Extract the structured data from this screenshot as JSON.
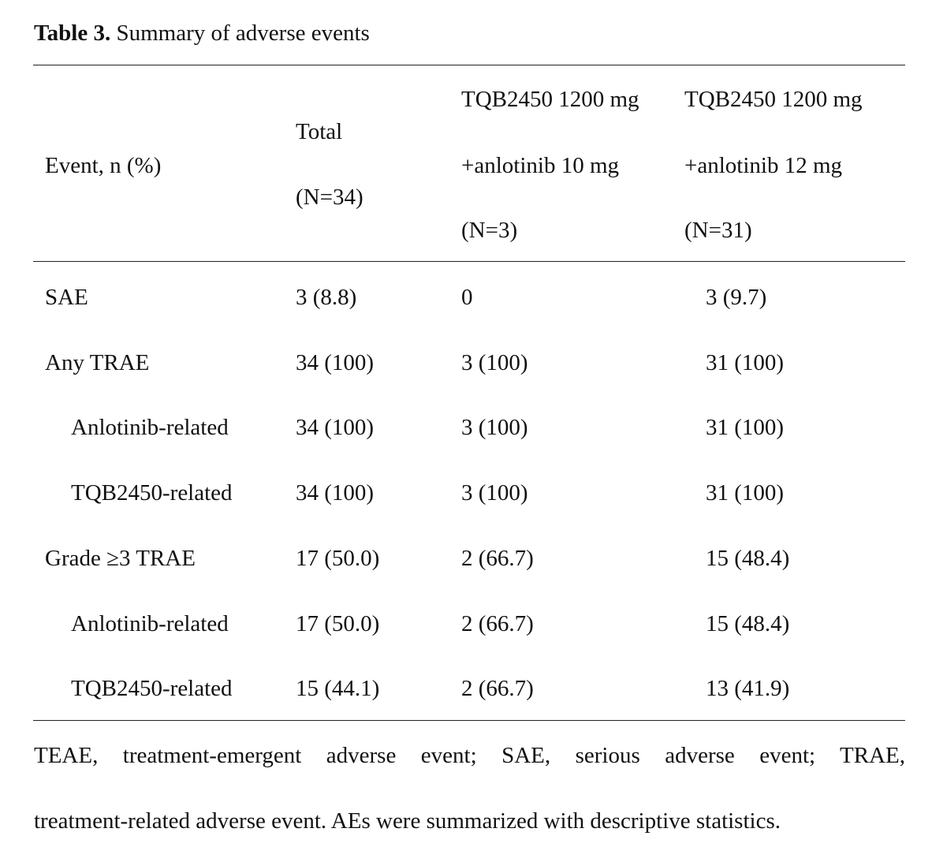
{
  "caption": {
    "label": "Table 3.",
    "text": "Summary of adverse events"
  },
  "table": {
    "header": [
      [
        "Event, n (%)"
      ],
      [
        "Total",
        "(N=34)"
      ],
      [
        "TQB2450 1200 mg",
        "+anlotinib 10 mg",
        "(N=3)"
      ],
      [
        "TQB2450 1200 mg",
        "+anlotinib 12 mg",
        "(N=31)"
      ]
    ],
    "rows": [
      [
        "SAE",
        "3 (8.8)",
        "0",
        "3 (9.7)"
      ],
      [
        "Any TRAE",
        "34 (100)",
        "3 (100)",
        "31 (100)"
      ],
      [
        "Anlotinib-related",
        "34 (100)",
        "3 (100)",
        "31 (100)"
      ],
      [
        "TQB2450-related",
        "34 (100)",
        "3 (100)",
        "31 (100)"
      ],
      [
        "Grade ≥3 TRAE",
        "17 (50.0)",
        "2 (66.7)",
        "15 (48.4)"
      ],
      [
        "Anlotinib-related",
        "17 (50.0)",
        "2 (66.7)",
        "15 (48.4)"
      ],
      [
        "TQB2450-related",
        "15 (44.1)",
        "2 (66.7)",
        "13 (41.9)"
      ]
    ]
  },
  "footnote": [
    "TEAE, treatment-emergent adverse event; SAE, serious adverse event; TRAE,",
    "treatment-related adverse event. AEs were summarized with descriptive statistics."
  ]
}
